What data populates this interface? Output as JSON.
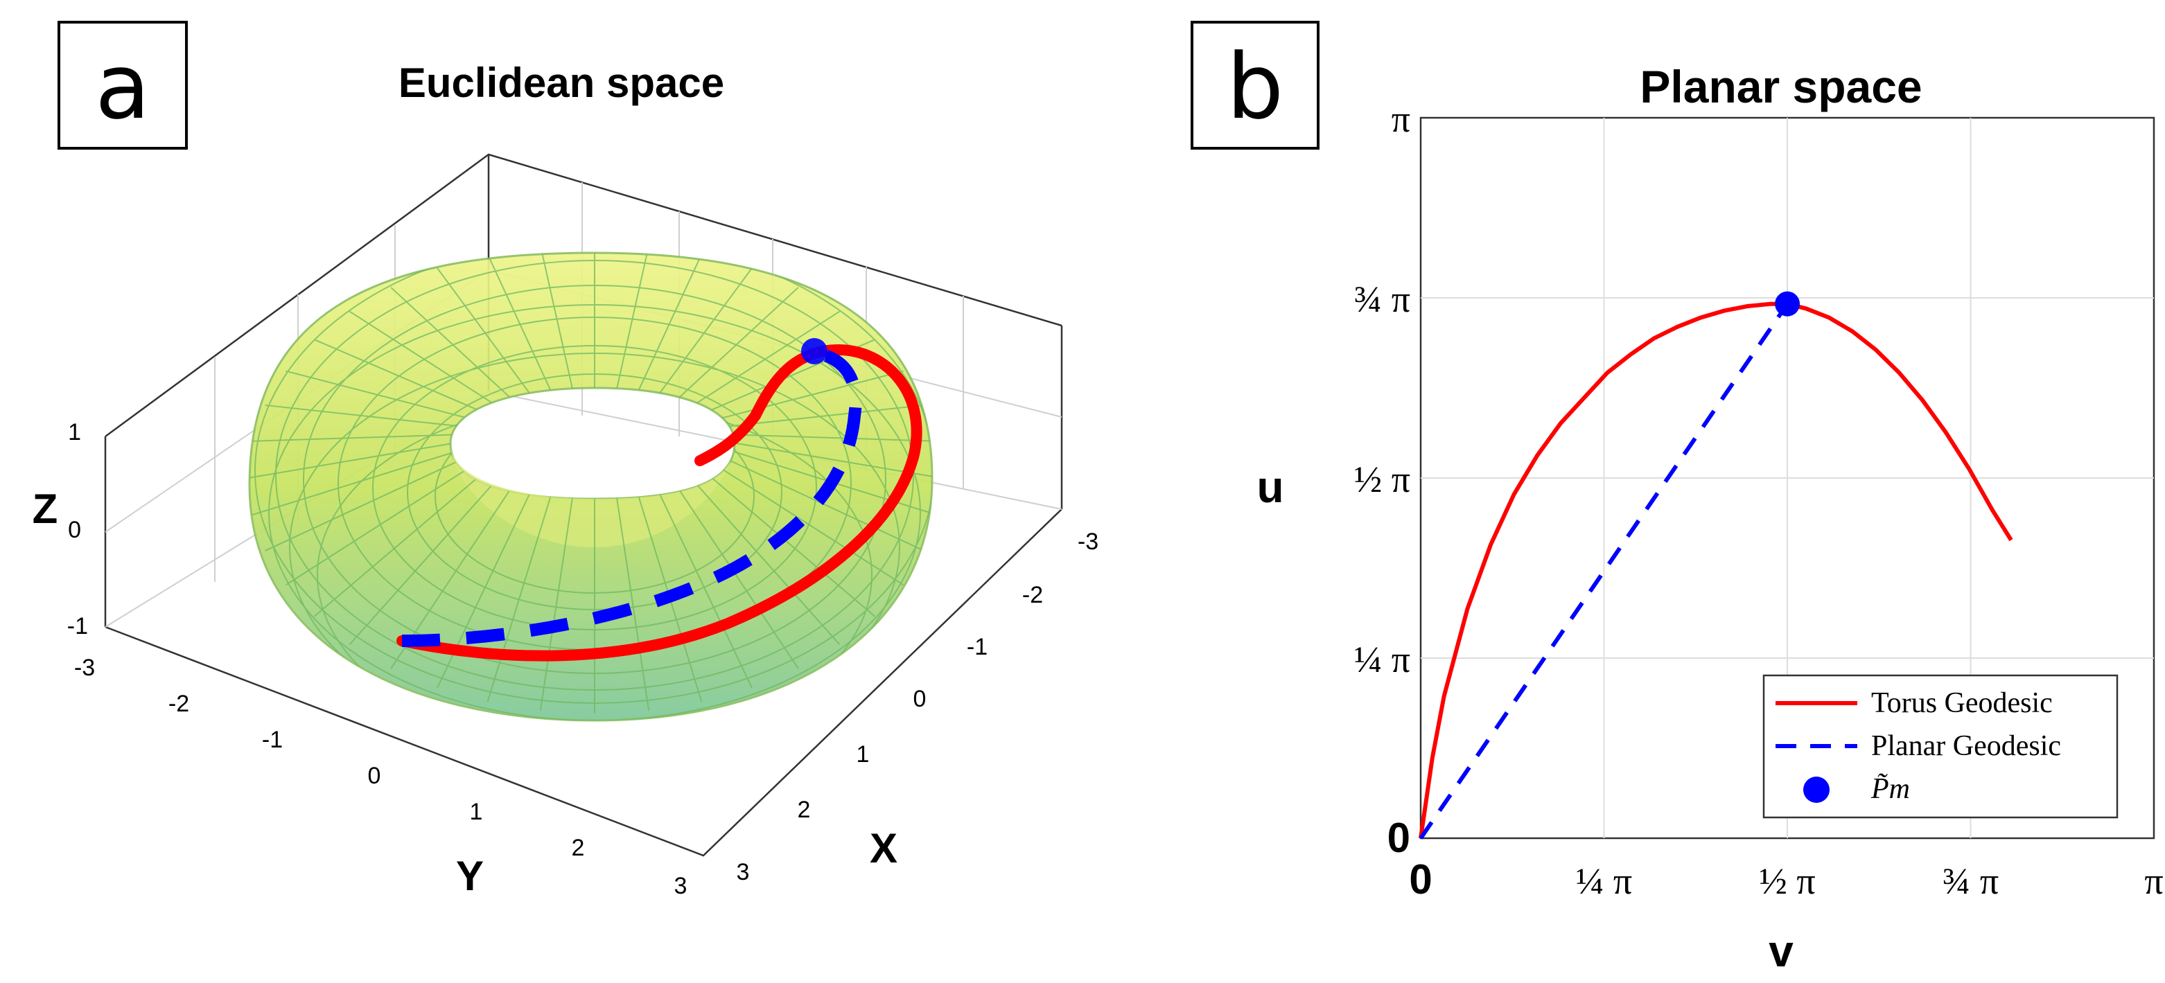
{
  "panel_a": {
    "label": "a",
    "title": "Euclidean space",
    "surface_colors": {
      "fill_top": "#eef58a",
      "fill_mid": "#c8e460",
      "fill_bottom": "#7fc89a",
      "mesh": "#6fb860"
    },
    "axes": {
      "xlabel": "X",
      "ylabel": "Y",
      "zlabel": "Z",
      "x_ticks": [
        "-3",
        "-2",
        "-1",
        "0",
        "1",
        "2",
        "3"
      ],
      "y_ticks": [
        "-3",
        "-2",
        "-1",
        "0",
        "1",
        "2",
        "3"
      ],
      "z_ticks": [
        "1",
        "0",
        "-1"
      ]
    }
  },
  "panel_b": {
    "label": "b",
    "title": "Planar space",
    "xlabel": "v",
    "ylabel": "u",
    "x_ticks": [
      "0",
      "¼ π",
      "½ π",
      "¾ π",
      "π"
    ],
    "y_ticks": [
      "0",
      "¼ π",
      "½ π",
      "¾ π",
      "π"
    ],
    "legend": {
      "torus": "Torus Geodesic",
      "planar": "Planar Geodesic",
      "point": "P̃m"
    }
  },
  "colors": {
    "torus_geodesic": "#ff0000",
    "planar_geodesic": "#0000ff",
    "point": "#0000ff",
    "grid": "#dddddd"
  },
  "chart_data": [
    {
      "type": "scatter",
      "title": "Euclidean space",
      "xlabel": "X",
      "ylabel": "Y",
      "zlabel": "Z",
      "xlim": [
        -3,
        3
      ],
      "ylim": [
        -3,
        3
      ],
      "zlim": [
        -1,
        1
      ],
      "grid": true
    },
    {
      "type": "line",
      "title": "Planar space",
      "xlabel": "v",
      "ylabel": "u",
      "xlim": [
        0,
        3.1416
      ],
      "ylim": [
        0,
        3.1416
      ],
      "grid": true,
      "legend_position": "bottom-right",
      "series": [
        {
          "name": "Torus Geodesic",
          "x": [
            0,
            0.05,
            0.1,
            0.2,
            0.3,
            0.4,
            0.5,
            0.6,
            0.7,
            0.8,
            0.9,
            1.0,
            1.1,
            1.2,
            1.3,
            1.4,
            1.5,
            1.571,
            1.65,
            1.75,
            1.85,
            1.95,
            2.05,
            2.15,
            2.25,
            2.35,
            2.45,
            2.53
          ],
          "y": [
            0,
            0.35,
            0.62,
            1.0,
            1.28,
            1.5,
            1.67,
            1.81,
            1.92,
            2.03,
            2.11,
            2.18,
            2.23,
            2.27,
            2.3,
            2.32,
            2.33,
            2.33,
            2.31,
            2.27,
            2.21,
            2.13,
            2.03,
            1.91,
            1.77,
            1.61,
            1.43,
            1.3
          ]
        },
        {
          "name": "Planar Geodesic",
          "x": [
            0,
            1.571
          ],
          "y": [
            0,
            2.33
          ]
        },
        {
          "name": "P̃m",
          "x": [
            1.571
          ],
          "y": [
            2.33
          ]
        }
      ]
    }
  ]
}
